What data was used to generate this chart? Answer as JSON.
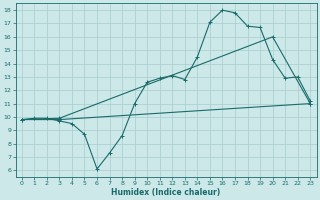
{
  "xlabel": "Humidex (Indice chaleur)",
  "bg_color": "#cce8e8",
  "grid_color": "#a8cccc",
  "line_color": "#1a6b6b",
  "xlim": [
    -0.5,
    23.5
  ],
  "ylim": [
    5.5,
    18.5
  ],
  "yticks": [
    6,
    7,
    8,
    9,
    10,
    11,
    12,
    13,
    14,
    15,
    16,
    17,
    18
  ],
  "xticks": [
    0,
    1,
    2,
    3,
    4,
    5,
    6,
    7,
    8,
    9,
    10,
    11,
    12,
    13,
    14,
    15,
    16,
    17,
    18,
    19,
    20,
    21,
    22,
    23
  ],
  "line1_x": [
    0,
    1,
    2,
    3,
    4,
    5,
    6,
    7,
    8,
    9,
    10,
    11,
    12,
    13,
    14,
    15,
    16,
    17,
    18,
    19,
    20,
    21,
    22,
    23
  ],
  "line1_y": [
    9.8,
    9.9,
    9.9,
    9.7,
    9.5,
    8.7,
    6.1,
    7.3,
    8.6,
    11.0,
    12.6,
    12.9,
    13.1,
    12.8,
    14.5,
    17.1,
    18.0,
    17.8,
    16.8,
    16.7,
    14.3,
    12.9,
    13.0,
    11.2
  ],
  "line2_x": [
    0,
    3,
    23
  ],
  "line2_y": [
    9.8,
    9.8,
    11.0
  ],
  "line3_x": [
    0,
    3,
    20,
    23
  ],
  "line3_y": [
    9.8,
    9.9,
    16.0,
    11.0
  ],
  "xlabel_fontsize": 5.5,
  "tick_fontsize": 4.5
}
